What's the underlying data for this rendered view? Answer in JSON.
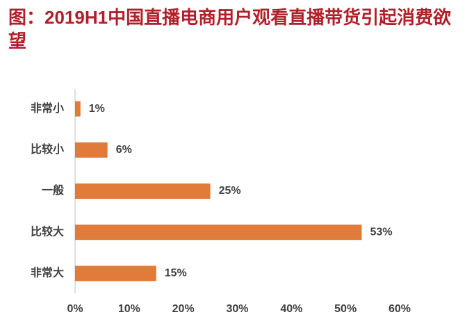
{
  "chart_data": {
    "type": "bar",
    "orientation": "horizontal",
    "title": "图：2019H1中国直播电商用户观看直播带货引起消费欲望",
    "categories": [
      "非常小",
      "比较小",
      "一般",
      "比较大",
      "非常大"
    ],
    "values": [
      1,
      6,
      25,
      53,
      15
    ],
    "value_labels": [
      "1%",
      "6%",
      "25%",
      "53%",
      "15%"
    ],
    "color": "#e07b39",
    "xlim": [
      0,
      60
    ],
    "xticks": [
      {
        "value": 0,
        "label": "0%"
      },
      {
        "value": 10,
        "label": "10%"
      },
      {
        "value": 20,
        "label": "20%"
      },
      {
        "value": 30,
        "label": "30%"
      },
      {
        "value": 40,
        "label": "40%"
      },
      {
        "value": 50,
        "label": "50%"
      },
      {
        "value": 60,
        "label": "60%"
      }
    ],
    "grid": false
  }
}
